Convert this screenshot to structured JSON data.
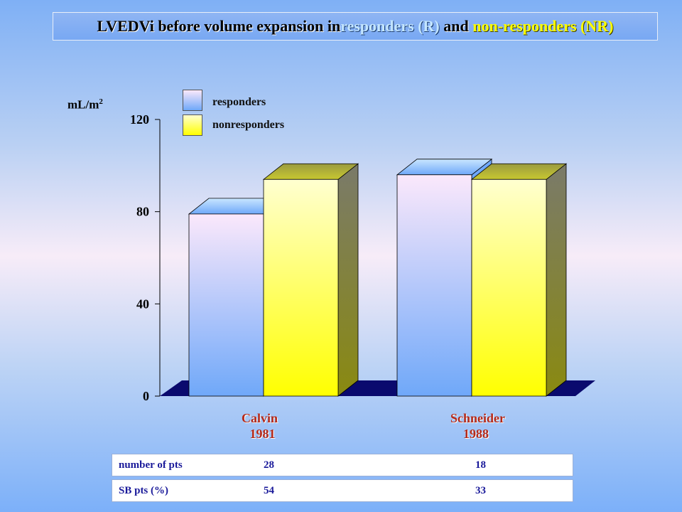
{
  "title": {
    "part1": "LVEDVi before volume expansion in ",
    "r": "responders (R)",
    "part2": " and ",
    "nr": "non-responders (NR)"
  },
  "y_unit": "mL/m",
  "y_unit_sup": "2",
  "legend": {
    "responders": "responders",
    "nonresponders": "nonresponders"
  },
  "colors": {
    "responders_top": "#fbe8fb",
    "responders_bottom": "#6fa8f9",
    "nonresponders_top": "#ffffd0",
    "nonresponders_bottom": "#ffff00",
    "floor": "#0a0a6e",
    "study_label": "#b52a1a",
    "table_text": "#1a1a9a"
  },
  "studies": [
    {
      "name": "Calvin",
      "year": "1981"
    },
    {
      "name": "Schneider",
      "year": "1988"
    }
  ],
  "table": {
    "rows": [
      {
        "label": "number of pts",
        "values": [
          "28",
          "18"
        ]
      },
      {
        "label": "SB pts (%)",
        "values": [
          "54",
          "33"
        ]
      }
    ]
  },
  "chart_data": {
    "type": "bar",
    "categories": [
      "Calvin 1981",
      "Schneider 1988"
    ],
    "series": [
      {
        "name": "responders",
        "values": [
          79,
          96
        ]
      },
      {
        "name": "nonresponders",
        "values": [
          94,
          94
        ]
      }
    ],
    "ylabel": "mL/m2",
    "yticks": [
      0,
      40,
      80,
      120
    ],
    "ylim": [
      0,
      120
    ]
  }
}
